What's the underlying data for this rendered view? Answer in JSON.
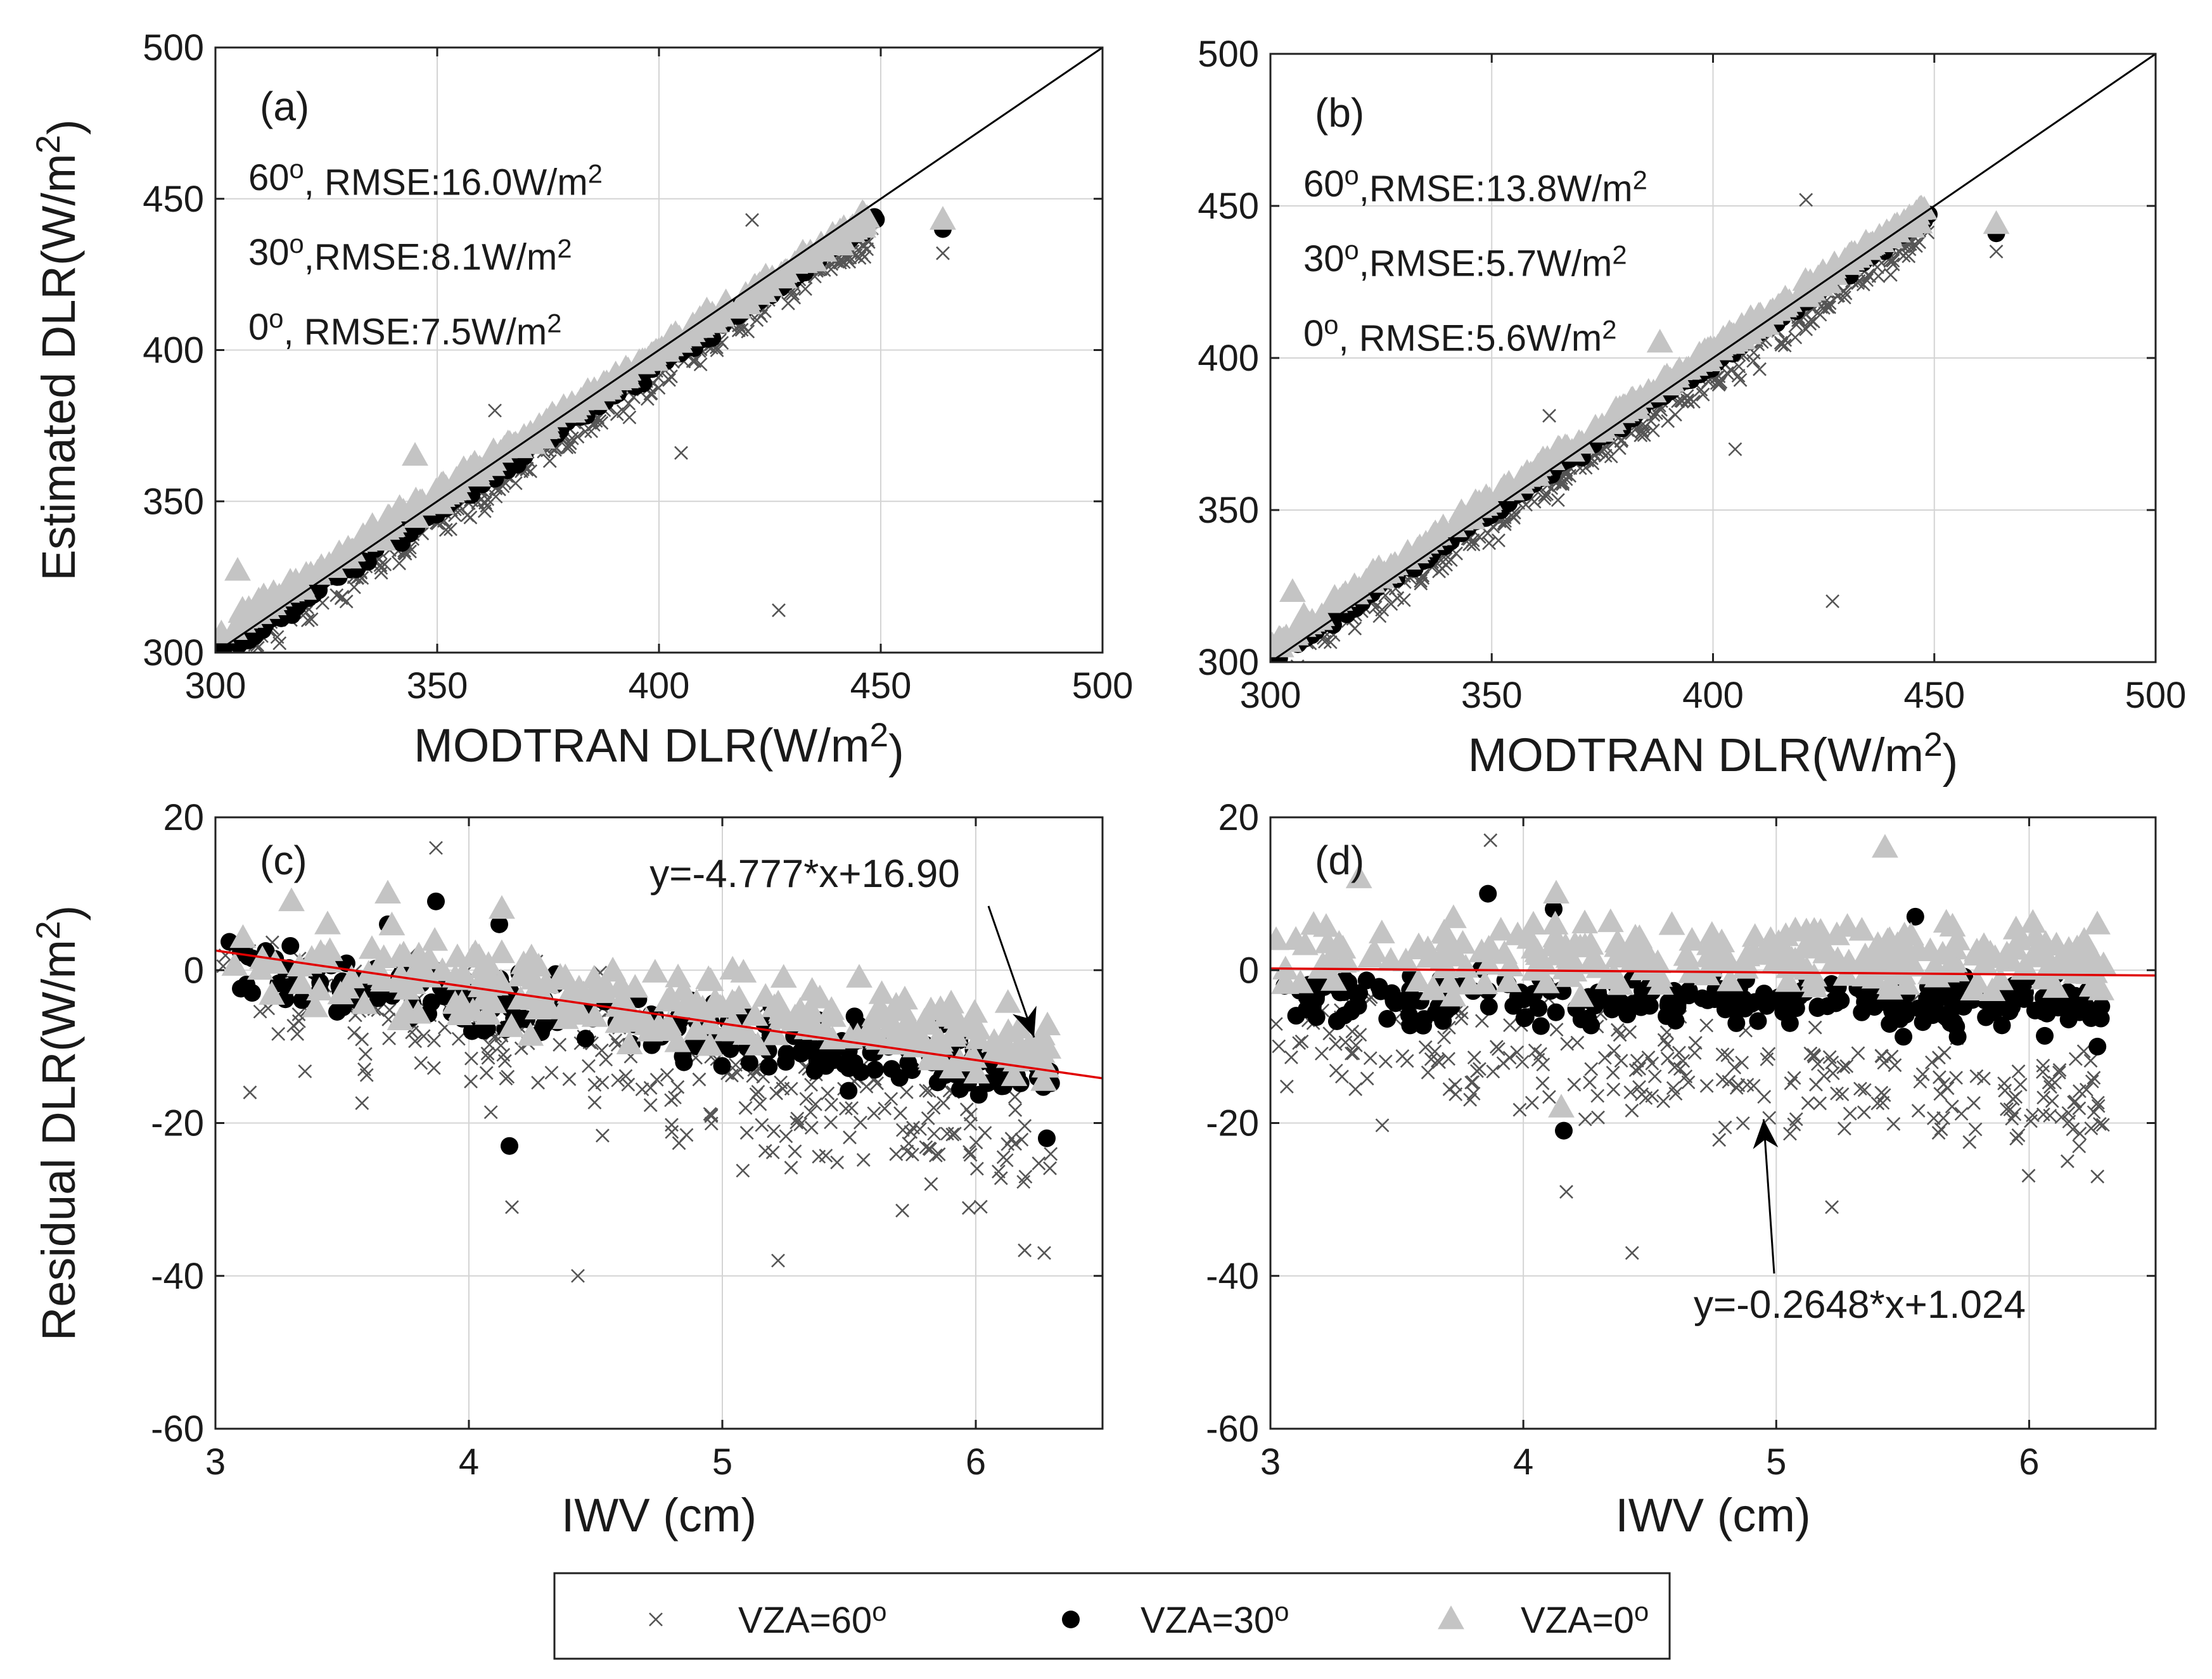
{
  "figure": {
    "legend": {
      "items": [
        {
          "label": "VZA=60",
          "sup": "o",
          "marker": "x",
          "color": "#555555"
        },
        {
          "label": "VZA=30",
          "sup": "o",
          "marker": "circle",
          "color": "#000000"
        },
        {
          "label": "VZA=0",
          "sup": "o",
          "marker": "triangle",
          "color": "#c4c4c4"
        }
      ]
    }
  },
  "colors": {
    "fit_line": "#e00000",
    "one_to_one": "#000000",
    "grid": "#d4d4d4"
  },
  "chart_data": [
    {
      "id": "a",
      "type": "scatter",
      "panel_label": "(a)",
      "xlabel": "MODTRAN DLR(W/m",
      "xlabel_sup": "2",
      "xlabel_end": ")",
      "ylabel": "Estimated DLR(W/m",
      "ylabel_sup": "2",
      "ylabel_end": ")",
      "xlim": [
        300,
        500
      ],
      "ylim": [
        300,
        500
      ],
      "xticks": [
        300,
        350,
        400,
        450,
        500
      ],
      "yticks": [
        300,
        350,
        400,
        450,
        500
      ],
      "grid": true,
      "reference_line": "1:1",
      "annotations": [
        {
          "angle": "60",
          "sup": "o",
          "text": ", RMSE:16.0W/m",
          "unit_sup": "2"
        },
        {
          "angle": "30",
          "sup": "o",
          "text": ",RMSE:8.1W/m",
          "unit_sup": "2"
        },
        {
          "angle": "0",
          "sup": "o",
          "text": ", RMSE:7.5W/m",
          "unit_sup": "2"
        }
      ],
      "series": [
        {
          "name": "VZA=60",
          "marker": "x",
          "slope": 0.968,
          "intercept": 4.0,
          "noise": 6.0,
          "ref_x": [
            300,
            449
          ],
          "points": [
            [
              421,
              443
            ],
            [
              405,
              366
            ],
            [
              427,
              314
            ],
            [
              464,
              432
            ],
            [
              363,
              380
            ]
          ]
        },
        {
          "name": "VZA=30",
          "marker": "circle",
          "slope": 0.974,
          "intercept": 6.0,
          "noise": 2.5,
          "ref_x": [
            300,
            449
          ],
          "points": [
            [
              464,
              440
            ]
          ]
        },
        {
          "name": "VZA=0",
          "marker": "triangle",
          "slope": 0.94,
          "intercept": 23.0,
          "noise": 3.0,
          "ref_x": [
            300,
            449
          ],
          "points": [
            [
              464,
              443
            ],
            [
              345,
              365
            ],
            [
              305,
              327
            ]
          ]
        }
      ]
    },
    {
      "id": "b",
      "type": "scatter",
      "panel_label": "(b)",
      "xlabel": "MODTRAN DLR(W/m",
      "xlabel_sup": "2",
      "xlabel_end": ")",
      "ylabel": "",
      "xlim": [
        300,
        500
      ],
      "ylim": [
        300,
        500
      ],
      "xticks": [
        300,
        350,
        400,
        450,
        500
      ],
      "yticks": [
        300,
        350,
        400,
        450,
        500
      ],
      "grid": true,
      "reference_line": "1:1",
      "annotations": [
        {
          "angle": "60",
          "sup": "o",
          "text": ",RMSE:13.8W/m",
          "unit_sup": "2"
        },
        {
          "angle": "30",
          "sup": "o",
          "text": ",RMSE:5.7W/m",
          "unit_sup": "2"
        },
        {
          "angle": "0",
          "sup": "o",
          "text": ", RMSE:5.6W/m",
          "unit_sup": "2"
        }
      ],
      "series": [
        {
          "name": "VZA=60",
          "marker": "x",
          "slope": 0.975,
          "intercept": 3.5,
          "noise": 5.0,
          "ref_x": [
            300,
            449
          ],
          "points": [
            [
              421,
              452
            ],
            [
              405,
              370
            ],
            [
              427,
              320
            ],
            [
              464,
              435
            ],
            [
              363,
              381
            ]
          ]
        },
        {
          "name": "VZA=30",
          "marker": "circle",
          "slope": 0.985,
          "intercept": 5.0,
          "noise": 2.0,
          "ref_x": [
            300,
            449
          ],
          "points": [
            [
              464,
              441
            ]
          ]
        },
        {
          "name": "VZA=0",
          "marker": "triangle",
          "slope": 0.97,
          "intercept": 14.0,
          "noise": 2.5,
          "ref_x": [
            300,
            449
          ],
          "points": [
            [
              464,
              444
            ],
            [
              388,
              405
            ],
            [
              305,
              323
            ]
          ]
        }
      ]
    },
    {
      "id": "c",
      "type": "scatter",
      "panel_label": "(c)",
      "xlabel": "IWV (cm)",
      "ylabel": "Residual DLR(W/m",
      "ylabel_sup": "2",
      "ylabel_end": ")",
      "xlim": [
        3,
        6.5
      ],
      "ylim": [
        -60,
        20
      ],
      "xticks": [
        3,
        4,
        5,
        6
      ],
      "yticks": [
        -60,
        -40,
        -20,
        0,
        20
      ],
      "grid": true,
      "fit": {
        "slope": -4.777,
        "intercept": 16.9,
        "label": "y=-4.777*x+16.90",
        "arrow_tip": [
          6.23,
          -8.8
        ]
      },
      "series": [
        {
          "name": "VZA=60",
          "marker": "x",
          "slope": -7.0,
          "intercept": 22.0,
          "noise": 8.0,
          "ref_x": [
            3.02,
            6.3
          ],
          "points": [
            [
              4.43,
              -40
            ],
            [
              5.22,
              -38
            ],
            [
              6.27,
              -37
            ],
            [
              3.87,
              16
            ],
            [
              4.17,
              -31
            ]
          ]
        },
        {
          "name": "VZA=30",
          "marker": "circle",
          "slope": -4.6,
          "intercept": 15.0,
          "noise": 4.0,
          "ref_x": [
            3.02,
            6.3
          ],
          "points": [
            [
              4.16,
              -23
            ],
            [
              6.28,
              -22
            ],
            [
              3.87,
              9
            ],
            [
              4.12,
              6
            ],
            [
              3.68,
              6
            ]
          ]
        },
        {
          "name": "VZA=0",
          "marker": "triangle",
          "slope": -3.5,
          "intercept": 12.0,
          "noise": 5.0,
          "ref_x": [
            3.02,
            6.3
          ],
          "points": [
            [
              3.68,
              10
            ],
            [
              3.3,
              9
            ],
            [
              4.13,
              8
            ],
            [
              5.54,
              -1
            ]
          ]
        }
      ]
    },
    {
      "id": "d",
      "type": "scatter",
      "panel_label": "(d)",
      "xlabel": "IWV (cm)",
      "ylabel": "",
      "xlim": [
        3,
        6.5
      ],
      "ylim": [
        -60,
        20
      ],
      "xticks": [
        3,
        4,
        5,
        6
      ],
      "yticks": [
        -60,
        -40,
        -20,
        0,
        20
      ],
      "grid": true,
      "fit": {
        "slope": -0.2648,
        "intercept": 1.024,
        "label": "y=-0.2648*x+1.024",
        "arrow_tip": [
          4.95,
          -19.5
        ]
      },
      "series": [
        {
          "name": "VZA=60",
          "marker": "x",
          "slope": -3.0,
          "intercept": 3.0,
          "noise": 7.5,
          "ref_x": [
            3.02,
            6.3
          ],
          "points": [
            [
              4.43,
              -37
            ],
            [
              5.22,
              -31
            ],
            [
              6.27,
              -27
            ],
            [
              3.87,
              17
            ],
            [
              4.17,
              -29
            ]
          ]
        },
        {
          "name": "VZA=30",
          "marker": "circle",
          "slope": -0.4,
          "intercept": -2.0,
          "noise": 3.5,
          "ref_x": [
            3.02,
            6.3
          ],
          "points": [
            [
              4.16,
              -21
            ],
            [
              6.27,
              -10
            ],
            [
              3.86,
              10
            ],
            [
              4.12,
              8
            ],
            [
              5.55,
              7
            ]
          ]
        },
        {
          "name": "VZA=0",
          "marker": "triangle",
          "slope": -0.3,
          "intercept": 3.0,
          "noise": 4.5,
          "ref_x": [
            3.02,
            6.3
          ],
          "points": [
            [
              5.43,
              16
            ],
            [
              3.35,
              12
            ],
            [
              4.13,
              10
            ],
            [
              4.15,
              -18
            ]
          ]
        }
      ]
    }
  ]
}
